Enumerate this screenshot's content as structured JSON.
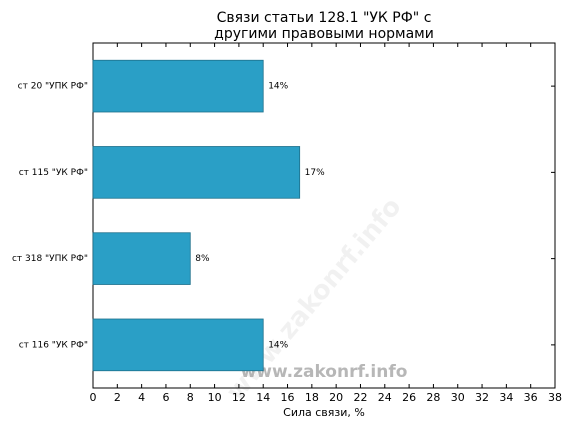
{
  "chart_data": {
    "type": "barh",
    "title": [
      "Связи статьи 128.1 \"УК РФ\" с",
      "другими правовыми нормами"
    ],
    "xlabel": "Сила связи, %",
    "categories": [
      "ст 20 \"УПК РФ\"",
      "ст 115 \"УК РФ\"",
      "ст 318 \"УПК РФ\"",
      "ст 116 \"УК РФ\""
    ],
    "values": [
      14,
      17,
      8,
      14
    ],
    "value_labels": [
      "14%",
      "17%",
      "8%",
      "14%"
    ],
    "color": "#2a9fc6",
    "xlim": [
      0,
      38
    ],
    "xticks": [
      0,
      2,
      4,
      6,
      8,
      10,
      12,
      14,
      16,
      18,
      20,
      22,
      24,
      26,
      28,
      30,
      32,
      34,
      36,
      38
    ],
    "watermark": "www.zakonrf.info"
  }
}
